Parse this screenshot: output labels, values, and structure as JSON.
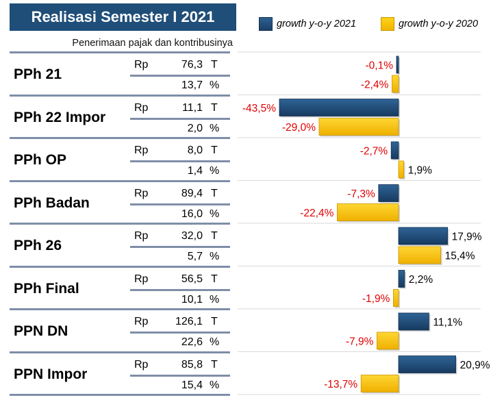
{
  "header": {
    "title": "Realisasi Semester I 2021",
    "subtitle": "Penerimaan pajak dan kontribusinya"
  },
  "legend": {
    "series_2021": "growth y-o-y 2021",
    "series_2020": "growth y-o-y 2020"
  },
  "colors": {
    "title_bg": "#1f4e79",
    "bar_2021": "#1f4e79",
    "bar_2020": "#ffc000",
    "neg_label": "#e00000",
    "pos_label": "#000000",
    "grid": "#d9d9d9"
  },
  "table": {
    "rows": [
      {
        "name": "PPh 21",
        "currency": "Rp",
        "amount": "76,3",
        "amount_unit": "T",
        "share": "13,7",
        "share_unit": "%"
      },
      {
        "name": "PPh 22 Impor",
        "currency": "Rp",
        "amount": "11,1",
        "amount_unit": "T",
        "share": "2,0",
        "share_unit": "%"
      },
      {
        "name": "PPh OP",
        "currency": "Rp",
        "amount": "8,0",
        "amount_unit": "T",
        "share": "1,4",
        "share_unit": "%"
      },
      {
        "name": "PPh Badan",
        "currency": "Rp",
        "amount": "89,4",
        "amount_unit": "T",
        "share": "16,0",
        "share_unit": "%"
      },
      {
        "name": "PPh 26",
        "currency": "Rp",
        "amount": "32,0",
        "amount_unit": "T",
        "share": "5,7",
        "share_unit": "%"
      },
      {
        "name": "PPh Final",
        "currency": "Rp",
        "amount": "56,5",
        "amount_unit": "T",
        "share": "10,1",
        "share_unit": "%"
      },
      {
        "name": "PPN DN",
        "currency": "Rp",
        "amount": "126,1",
        "amount_unit": "T",
        "share": "22,6",
        "share_unit": "%"
      },
      {
        "name": "PPN Impor",
        "currency": "Rp",
        "amount": "85,8",
        "amount_unit": "T",
        "share": "15,4",
        "share_unit": "%"
      }
    ]
  },
  "chart_data": {
    "type": "bar",
    "orientation": "horizontal",
    "title": "Realisasi Semester I 2021",
    "categories": [
      "PPh 21",
      "PPh 22 Impor",
      "PPh OP",
      "PPh Badan",
      "PPh 26",
      "PPh Final",
      "PPN DN",
      "PPN Impor"
    ],
    "series": [
      {
        "name": "growth y-o-y 2021",
        "values": [
          -0.1,
          -43.5,
          -2.7,
          -7.3,
          17.9,
          2.2,
          11.1,
          20.9
        ],
        "labels": [
          "-0,1%",
          "-43,5%",
          "-2,7%",
          "-7,3%",
          "17,9%",
          "2,2%",
          "11,1%",
          "20,9%"
        ]
      },
      {
        "name": "growth y-o-y 2020",
        "values": [
          -2.4,
          -29.0,
          1.9,
          -22.4,
          15.4,
          -1.9,
          -7.9,
          -13.7
        ],
        "labels": [
          "-2,4%",
          "-29,0%",
          "1,9%",
          "-22,4%",
          "15,4%",
          "-1,9%",
          "-7,9%",
          "-13,7%"
        ]
      }
    ],
    "xlim": [
      -50,
      25
    ],
    "legend": "top-right",
    "grid": true
  }
}
